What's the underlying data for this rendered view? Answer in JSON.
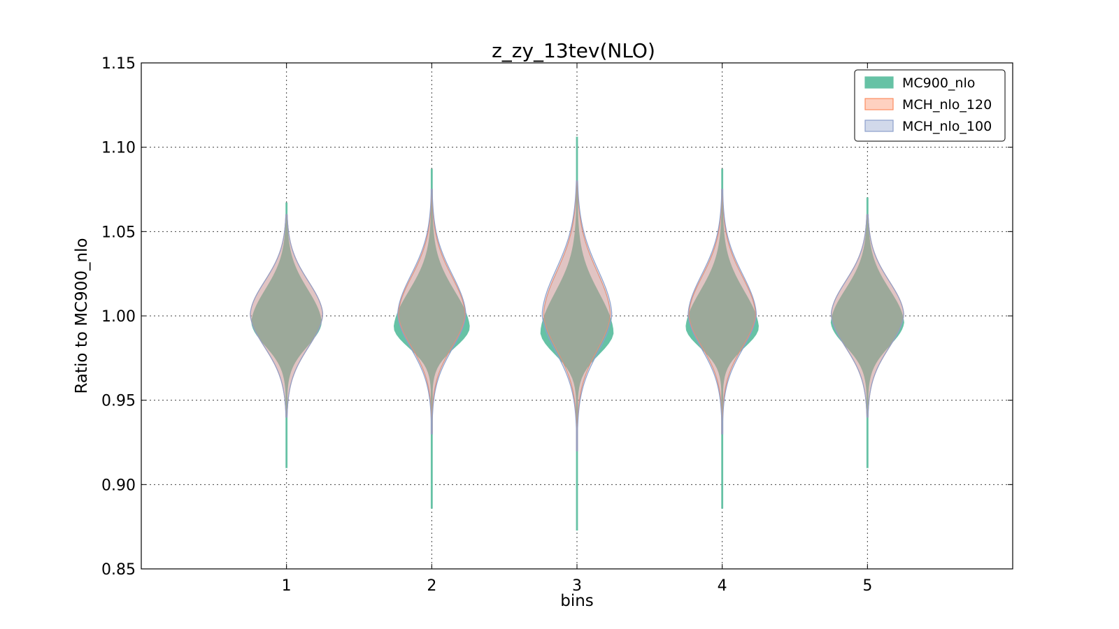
{
  "chart_data": {
    "type": "violin",
    "title": "z_zy_13tev(NLO)",
    "xlabel": "bins",
    "ylabel": "Ratio to MC900_nlo",
    "categories": [
      "1",
      "2",
      "3",
      "4",
      "5"
    ],
    "x": [
      1,
      2,
      3,
      4,
      5
    ],
    "xlim": [
      0,
      6
    ],
    "ylim": [
      0.85,
      1.15
    ],
    "yticks": [
      "0.85",
      "0.90",
      "0.95",
      "1.00",
      "1.05",
      "1.10",
      "1.15"
    ],
    "ytick_values": [
      0.85,
      0.9,
      0.95,
      1.0,
      1.05,
      1.1,
      1.15
    ],
    "grid": true,
    "legend_position": "top-right",
    "series": [
      {
        "name": "MC900_nlo",
        "color": "#66c2a5",
        "fill_opacity": 1.0,
        "violins": [
          {
            "min": 0.91,
            "max": 1.067,
            "center": 0.996,
            "width": 0.48,
            "spread_up": 0.02,
            "spread_down": 0.014
          },
          {
            "min": 0.886,
            "max": 1.087,
            "center": 0.993,
            "width": 0.52,
            "spread_up": 0.022,
            "spread_down": 0.012
          },
          {
            "min": 0.873,
            "max": 1.106,
            "center": 0.99,
            "width": 0.5,
            "spread_up": 0.024,
            "spread_down": 0.013
          },
          {
            "min": 0.886,
            "max": 1.087,
            "center": 0.993,
            "width": 0.5,
            "spread_up": 0.022,
            "spread_down": 0.012
          },
          {
            "min": 0.91,
            "max": 1.07,
            "center": 0.996,
            "width": 0.5,
            "spread_up": 0.02,
            "spread_down": 0.014
          }
        ]
      },
      {
        "name": "MCH_nlo_120",
        "color": "#fc8d62",
        "fill_opacity": 0.4,
        "violins": [
          {
            "min": 0.94,
            "max": 1.06,
            "center": 1.001,
            "width": 0.5,
            "spread_up": 0.02,
            "spread_down": 0.02
          },
          {
            "min": 0.93,
            "max": 1.075,
            "center": 1.001,
            "width": 0.46,
            "spread_up": 0.023,
            "spread_down": 0.02
          },
          {
            "min": 0.92,
            "max": 1.08,
            "center": 1.001,
            "width": 0.46,
            "spread_up": 0.026,
            "spread_down": 0.022
          },
          {
            "min": 0.93,
            "max": 1.075,
            "center": 1.001,
            "width": 0.46,
            "spread_up": 0.023,
            "spread_down": 0.02
          },
          {
            "min": 0.94,
            "max": 1.06,
            "center": 1.001,
            "width": 0.5,
            "spread_up": 0.02,
            "spread_down": 0.02
          }
        ]
      },
      {
        "name": "MCH_nlo_100",
        "color": "#8da0cb",
        "fill_opacity": 0.25,
        "violins": [
          {
            "min": 0.94,
            "max": 1.06,
            "center": 1.001,
            "width": 0.5,
            "spread_up": 0.02,
            "spread_down": 0.02
          },
          {
            "min": 0.93,
            "max": 1.075,
            "center": 1.001,
            "width": 0.47,
            "spread_up": 0.024,
            "spread_down": 0.021
          },
          {
            "min": 0.92,
            "max": 1.08,
            "center": 1.001,
            "width": 0.48,
            "spread_up": 0.027,
            "spread_down": 0.023
          },
          {
            "min": 0.93,
            "max": 1.075,
            "center": 1.001,
            "width": 0.47,
            "spread_up": 0.024,
            "spread_down": 0.021
          },
          {
            "min": 0.94,
            "max": 1.06,
            "center": 1.001,
            "width": 0.5,
            "spread_up": 0.02,
            "spread_down": 0.02
          }
        ]
      }
    ]
  }
}
